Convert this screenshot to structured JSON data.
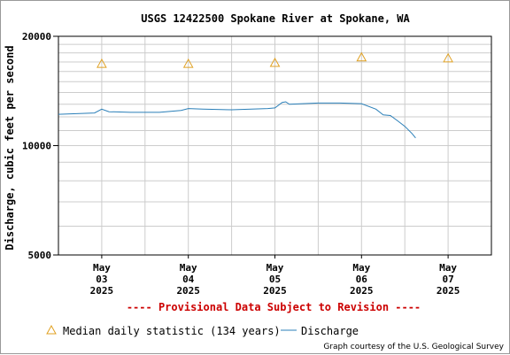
{
  "chart_data": {
    "type": "line",
    "title": "USGS 12422500 Spokane River at Spokane, WA",
    "ylabel": "Discharge, cubic feet per second",
    "y_scale": "log",
    "ylim": [
      5000,
      20000
    ],
    "y_ticks": [
      "20000",
      "10000",
      "5000"
    ],
    "x_ticks": [
      {
        "month": "May",
        "day": "03",
        "year": "2025"
      },
      {
        "month": "May",
        "day": "04",
        "year": "2025"
      },
      {
        "month": "May",
        "day": "05",
        "year": "2025"
      },
      {
        "month": "May",
        "day": "06",
        "year": "2025"
      },
      {
        "month": "May",
        "day": "07",
        "year": "2025"
      }
    ],
    "series": [
      {
        "name": "Discharge",
        "color": "#2a7fb8",
        "points": [
          [
            "2025-05-02 12:00",
            12200
          ],
          [
            "2025-05-02 22:00",
            12300
          ],
          [
            "2025-05-03 00:00",
            12600
          ],
          [
            "2025-05-03 02:00",
            12400
          ],
          [
            "2025-05-03 08:00",
            12350
          ],
          [
            "2025-05-03 16:00",
            12350
          ],
          [
            "2025-05-03 22:00",
            12500
          ],
          [
            "2025-05-04 00:00",
            12650
          ],
          [
            "2025-05-04 04:00",
            12600
          ],
          [
            "2025-05-04 12:00",
            12550
          ],
          [
            "2025-05-04 22:00",
            12650
          ],
          [
            "2025-05-05 00:00",
            12700
          ],
          [
            "2025-05-05 02:00",
            13150
          ],
          [
            "2025-05-05 03:00",
            13200
          ],
          [
            "2025-05-05 04:00",
            13000
          ],
          [
            "2025-05-05 12:00",
            13100
          ],
          [
            "2025-05-05 18:00",
            13100
          ],
          [
            "2025-05-06 00:00",
            13050
          ],
          [
            "2025-05-06 04:00",
            12600
          ],
          [
            "2025-05-06 06:00",
            12150
          ],
          [
            "2025-05-06 08:00",
            12100
          ],
          [
            "2025-05-06 10:00",
            11700
          ],
          [
            "2025-05-06 12:00",
            11300
          ],
          [
            "2025-05-06 14:00",
            10800
          ],
          [
            "2025-05-06 15:00",
            10500
          ]
        ]
      },
      {
        "name": "Median daily statistic (134 years)",
        "color": "#e0a020",
        "marker": "triangle",
        "points": [
          [
            "2025-05-03 00:00",
            16800
          ],
          [
            "2025-05-04 00:00",
            16800
          ],
          [
            "2025-05-05 00:00",
            16900
          ],
          [
            "2025-05-06 00:00",
            17500
          ],
          [
            "2025-05-07 00:00",
            17400
          ]
        ]
      }
    ],
    "grid": true
  },
  "notice": "---- Provisional Data Subject to Revision ----",
  "legend": {
    "median_label": "Median daily statistic (134 years)",
    "discharge_label": "Discharge"
  },
  "credit": "Graph courtesy of the U.S. Geological Survey"
}
